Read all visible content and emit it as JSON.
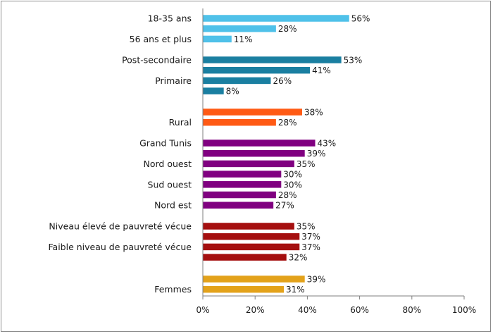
{
  "chart_data": {
    "type": "bar",
    "orientation": "horizontal",
    "title": "",
    "xlabel": "",
    "ylabel": "",
    "xlim": [
      0,
      100
    ],
    "x_ticks": [
      "0%",
      "20%",
      "40%",
      "60%",
      "80%",
      "100%"
    ],
    "value_suffix": "%",
    "grid": false,
    "legend": "none",
    "groups": [
      {
        "color": "#4fc1e9",
        "bars": [
          {
            "label": "18-35 ans",
            "value": 56
          },
          {
            "label": "",
            "value": 28
          },
          {
            "label": "56 ans et plus",
            "value": 11
          }
        ]
      },
      {
        "color": "#1a7fa1",
        "bars": [
          {
            "label": "Post-secondaire",
            "value": 53
          },
          {
            "label": "",
            "value": 41
          },
          {
            "label": "Primaire",
            "value": 26
          },
          {
            "label": "",
            "value": 8
          }
        ]
      },
      {
        "color": "#ff5a14",
        "bars": [
          {
            "label": "",
            "value": 38
          },
          {
            "label": "Rural",
            "value": 28
          }
        ]
      },
      {
        "color": "#800080",
        "bars": [
          {
            "label": "Grand Tunis",
            "value": 43
          },
          {
            "label": "",
            "value": 39
          },
          {
            "label": "Nord ouest",
            "value": 35
          },
          {
            "label": "",
            "value": 30
          },
          {
            "label": "Sud ouest",
            "value": 30
          },
          {
            "label": "",
            "value": 28
          },
          {
            "label": "Nord est",
            "value": 27
          }
        ]
      },
      {
        "color": "#a50f0f",
        "bars": [
          {
            "label": "Niveau élevé de pauvreté vécue",
            "value": 35
          },
          {
            "label": "",
            "value": 37
          },
          {
            "label": "Faible niveau de pauvreté vécue",
            "value": 37
          },
          {
            "label": "",
            "value": 32
          }
        ]
      },
      {
        "color": "#e3a21a",
        "bars": [
          {
            "label": "",
            "value": 39
          },
          {
            "label": "Femmes",
            "value": 31
          }
        ]
      }
    ]
  }
}
